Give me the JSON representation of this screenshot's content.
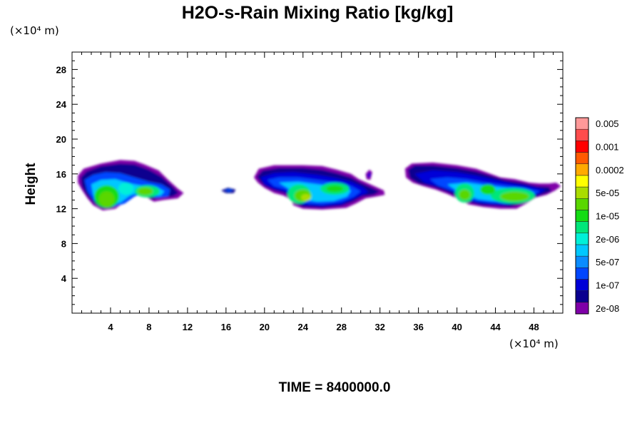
{
  "chart_data": {
    "type": "contour",
    "title": "H2O-s-Rain Mixing Ratio [kg/kg]",
    "ylabel": "Height",
    "xlabel": "",
    "y_unit": "(×10⁴ m)",
    "x_unit": "(×10⁴ m)",
    "footer": "TIME = 8400000.0",
    "xlim": [
      0,
      51
    ],
    "ylim": [
      0,
      30
    ],
    "x_ticks_major": [
      4,
      8,
      12,
      16,
      20,
      24,
      28,
      32,
      36,
      40,
      44,
      48
    ],
    "y_ticks_major": [
      4,
      8,
      12,
      16,
      20,
      24,
      28
    ],
    "colorbar": {
      "colors": [
        "#7f00a8",
        "#0a008f",
        "#0000d8",
        "#0046ff",
        "#0a8cff",
        "#00c8ff",
        "#00f0d8",
        "#00e67a",
        "#14dc14",
        "#5ad700",
        "#aadc00",
        "#ffff00",
        "#ffaa00",
        "#ff5a00",
        "#ff0000",
        "#ff4d4d",
        "#ff9999"
      ],
      "labels": [
        "2e-08",
        "1e-07",
        "5e-07",
        "2e-06",
        "1e-05",
        "5e-05",
        "0.0002",
        "0.001",
        "0.005"
      ]
    }
  }
}
